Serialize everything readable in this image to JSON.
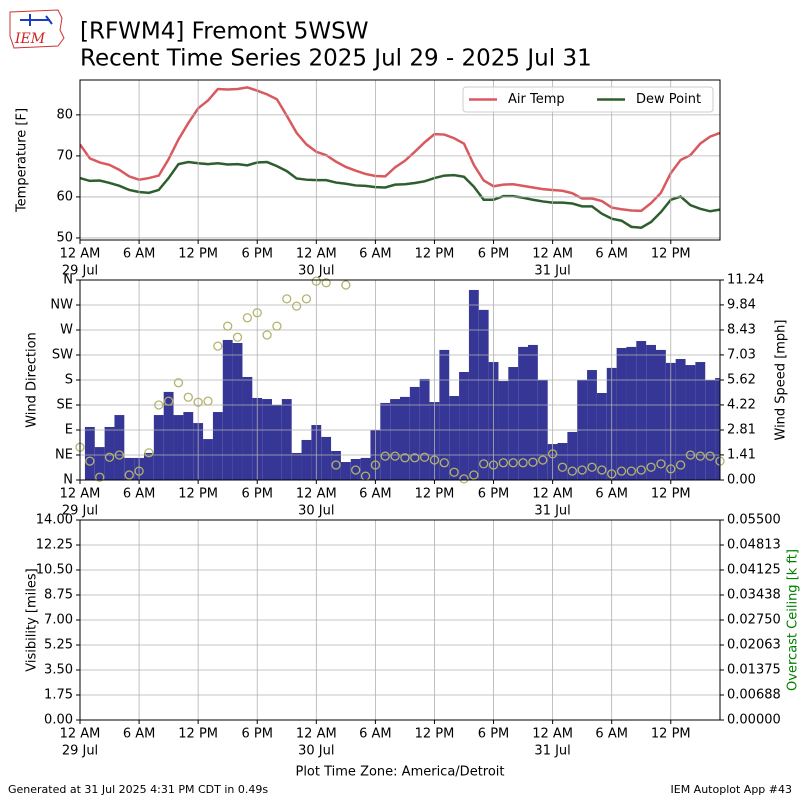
{
  "logo": {
    "text": "IEM"
  },
  "footer": {
    "left": "Generated at 31 Jul 2025 4:31 PM CDT in 0.49s",
    "right": "IEM Autoplot App #43"
  },
  "chart_data": [
    {
      "type": "line",
      "title": "[RFWM4] Fremont 5WSW",
      "subtitle": "Recent Time Series 2025 Jul 29 - 2025 Jul 31",
      "ylabel": "Temperature [F]",
      "x": [
        "2025-07-29T00:00",
        "2025-07-29T01:00",
        "2025-07-29T02:00",
        "2025-07-29T03:00",
        "2025-07-29T04:00",
        "2025-07-29T05:00",
        "2025-07-29T06:00",
        "2025-07-29T07:00",
        "2025-07-29T08:00",
        "2025-07-29T09:00",
        "2025-07-29T10:00",
        "2025-07-29T11:00",
        "2025-07-29T12:00",
        "2025-07-29T13:00",
        "2025-07-29T14:00",
        "2025-07-29T15:00",
        "2025-07-29T16:00",
        "2025-07-29T17:00",
        "2025-07-29T18:00",
        "2025-07-29T19:00",
        "2025-07-29T20:00",
        "2025-07-29T21:00",
        "2025-07-29T22:00",
        "2025-07-29T23:00",
        "2025-07-30T00:00",
        "2025-07-30T01:00",
        "2025-07-30T02:00",
        "2025-07-30T03:00",
        "2025-07-30T04:00",
        "2025-07-30T05:00",
        "2025-07-30T06:00",
        "2025-07-30T07:00",
        "2025-07-30T08:00",
        "2025-07-30T09:00",
        "2025-07-30T10:00",
        "2025-07-30T11:00",
        "2025-07-30T12:00",
        "2025-07-30T13:00",
        "2025-07-30T14:00",
        "2025-07-30T15:00",
        "2025-07-30T16:00",
        "2025-07-30T17:00",
        "2025-07-30T18:00",
        "2025-07-30T19:00",
        "2025-07-30T20:00",
        "2025-07-30T21:00",
        "2025-07-30T22:00",
        "2025-07-30T23:00",
        "2025-07-31T00:00",
        "2025-07-31T01:00",
        "2025-07-31T02:00",
        "2025-07-31T03:00",
        "2025-07-31T04:00",
        "2025-07-31T05:00",
        "2025-07-31T06:00",
        "2025-07-31T07:00",
        "2025-07-31T08:00",
        "2025-07-31T09:00",
        "2025-07-31T10:00",
        "2025-07-31T11:00",
        "2025-07-31T12:00",
        "2025-07-31T13:00",
        "2025-07-31T14:00",
        "2025-07-31T15:00",
        "2025-07-31T16:00",
        "2025-07-31T17:00"
      ],
      "series": [
        {
          "name": "Air Temp",
          "color": "#d9595f",
          "values": [
            72.8,
            69.4,
            68.4,
            67.8,
            66.6,
            65.0,
            64.2,
            64.6,
            65.2,
            69.2,
            74.0,
            78.0,
            81.6,
            83.5,
            86.3,
            86.2,
            86.3,
            86.7,
            85.9,
            85.0,
            83.8,
            79.8,
            75.6,
            72.8,
            71.0,
            70.2,
            68.6,
            67.3,
            66.4,
            65.6,
            65.1,
            65.0,
            67.2,
            68.8,
            71.0,
            73.3,
            75.3,
            75.2,
            74.3,
            73.0,
            67.8,
            64.0,
            62.6,
            63.0,
            63.1,
            62.7,
            62.3,
            61.9,
            61.7,
            61.5,
            60.9,
            59.6,
            59.6,
            59.0,
            57.4,
            57.0,
            56.7,
            56.6,
            58.5,
            61.0,
            65.8,
            69.0,
            70.2,
            73.0,
            74.7,
            75.6
          ]
        },
        {
          "name": "Dew Point",
          "color": "#2e5e2e",
          "values": [
            64.6,
            63.9,
            64.0,
            63.4,
            62.7,
            61.7,
            61.2,
            61.0,
            61.7,
            64.6,
            68.0,
            68.5,
            68.2,
            68.0,
            68.2,
            67.9,
            68.0,
            67.7,
            68.4,
            68.5,
            67.5,
            66.3,
            64.5,
            64.2,
            64.1,
            64.1,
            63.5,
            63.2,
            62.8,
            62.7,
            62.4,
            62.3,
            63.0,
            63.1,
            63.4,
            63.8,
            64.6,
            65.2,
            65.3,
            64.9,
            62.5,
            59.3,
            59.3,
            60.2,
            60.2,
            59.8,
            59.3,
            58.9,
            58.6,
            58.6,
            58.4,
            57.7,
            57.7,
            55.9,
            54.7,
            54.2,
            52.7,
            52.5,
            53.9,
            56.3,
            59.3,
            60.1,
            58.0,
            57.1,
            56.5,
            56.9
          ]
        }
      ],
      "xlim": [
        "2025-07-29T00:00",
        "2025-07-31T17:00"
      ],
      "xticks": [
        {
          "value": "2025-07-29T00:00",
          "label": "12 AM"
        },
        {
          "value": "2025-07-29T06:00",
          "label": "6 AM"
        },
        {
          "value": "2025-07-29T12:00",
          "label": "12 PM"
        },
        {
          "value": "2025-07-29T18:00",
          "label": "6 PM"
        },
        {
          "value": "2025-07-30T00:00",
          "label": "12 AM"
        },
        {
          "value": "2025-07-30T06:00",
          "label": "6 AM"
        },
        {
          "value": "2025-07-30T12:00",
          "label": "12 PM"
        },
        {
          "value": "2025-07-30T18:00",
          "label": "6 PM"
        },
        {
          "value": "2025-07-31T00:00",
          "label": "12 AM"
        },
        {
          "value": "2025-07-31T06:00",
          "label": "6 AM"
        },
        {
          "value": "2025-07-31T12:00",
          "label": "12 PM"
        }
      ],
      "xtick_dates": [
        {
          "value": "2025-07-29T00:00",
          "label": "29 Jul"
        },
        {
          "value": "2025-07-30T00:00",
          "label": "30 Jul"
        },
        {
          "value": "2025-07-31T00:00",
          "label": "31 Jul"
        }
      ],
      "ylim": [
        49.5,
        88.5
      ],
      "yticks": [
        50,
        60,
        70,
        80
      ],
      "grid": true,
      "legend": "upper right"
    },
    {
      "type": "mixed",
      "ylabel": "Wind Direction",
      "y2label": "Wind Speed [mph]",
      "x": [
        "2025-07-29T00:00",
        "2025-07-29T01:00",
        "2025-07-29T02:00",
        "2025-07-29T03:00",
        "2025-07-29T04:00",
        "2025-07-29T05:00",
        "2025-07-29T06:00",
        "2025-07-29T07:00",
        "2025-07-29T08:00",
        "2025-07-29T09:00",
        "2025-07-29T10:00",
        "2025-07-29T11:00",
        "2025-07-29T12:00",
        "2025-07-29T13:00",
        "2025-07-29T14:00",
        "2025-07-29T15:00",
        "2025-07-29T16:00",
        "2025-07-29T17:00",
        "2025-07-29T18:00",
        "2025-07-29T19:00",
        "2025-07-29T20:00",
        "2025-07-29T21:00",
        "2025-07-29T22:00",
        "2025-07-29T23:00",
        "2025-07-30T00:00",
        "2025-07-30T01:00",
        "2025-07-30T02:00",
        "2025-07-30T03:00",
        "2025-07-30T04:00",
        "2025-07-30T05:00",
        "2025-07-30T06:00",
        "2025-07-30T07:00",
        "2025-07-30T08:00",
        "2025-07-30T09:00",
        "2025-07-30T10:00",
        "2025-07-30T11:00",
        "2025-07-30T12:00",
        "2025-07-30T13:00",
        "2025-07-30T14:00",
        "2025-07-30T15:00",
        "2025-07-30T16:00",
        "2025-07-30T17:00",
        "2025-07-30T18:00",
        "2025-07-30T19:00",
        "2025-07-30T20:00",
        "2025-07-30T21:00",
        "2025-07-30T22:00",
        "2025-07-30T23:00",
        "2025-07-31T00:00",
        "2025-07-31T01:00",
        "2025-07-31T02:00",
        "2025-07-31T03:00",
        "2025-07-31T04:00",
        "2025-07-31T05:00",
        "2025-07-31T06:00",
        "2025-07-31T07:00",
        "2025-07-31T08:00",
        "2025-07-31T09:00",
        "2025-07-31T10:00",
        "2025-07-31T11:00",
        "2025-07-31T12:00",
        "2025-07-31T13:00",
        "2025-07-31T14:00",
        "2025-07-31T15:00",
        "2025-07-31T16:00",
        "2025-07-31T17:00"
      ],
      "series": [
        {
          "type": "bar",
          "axis": "y2",
          "color": "#363696",
          "values": [
            null,
            2.98,
            1.85,
            2.98,
            3.65,
            1.24,
            1.24,
            1.52,
            3.65,
            4.95,
            3.65,
            3.82,
            3.2,
            2.3,
            3.82,
            7.87,
            7.7,
            5.79,
            4.61,
            4.55,
            4.22,
            4.55,
            1.52,
            2.25,
            3.09,
            2.42,
            1.63,
            1.01,
            1.18,
            1.24,
            2.81,
            4.33,
            4.55,
            4.67,
            5.23,
            5.68,
            4.38,
            7.31,
            4.72,
            6.07,
            10.68,
            9.56,
            6.63,
            5.56,
            6.35,
            7.48,
            7.59,
            5.62,
            2.02,
            2.08,
            2.7,
            5.62,
            6.18,
            4.89,
            6.3,
            7.42,
            7.48,
            7.81,
            7.59,
            7.31,
            6.58,
            6.8,
            6.46,
            6.63,
            5.62,
            5.73
          ]
        },
        {
          "type": "scatter",
          "color": "#b3b36e",
          "values": [
            59,
            34,
            5,
            41,
            45,
            9,
            16,
            49,
            135,
            142,
            175,
            149,
            140,
            142,
            241,
            277,
            257,
            292,
            301,
            261,
            277,
            326,
            313,
            326,
            358,
            355,
            27,
            351,
            18,
            7,
            27,
            43,
            43,
            40,
            40,
            41,
            36,
            31,
            14,
            2,
            9,
            29,
            27,
            31,
            31,
            31,
            32,
            36,
            47,
            23,
            16,
            18,
            23,
            18,
            11,
            16,
            16,
            18,
            23,
            29,
            20,
            27,
            45,
            43,
            43,
            34
          ]
        }
      ],
      "xlim": [
        "2025-07-29T00:00",
        "2025-07-31T17:00"
      ],
      "xticks": [
        {
          "value": "2025-07-29T00:00",
          "label": "12 AM"
        },
        {
          "value": "2025-07-29T06:00",
          "label": "6 AM"
        },
        {
          "value": "2025-07-29T12:00",
          "label": "12 PM"
        },
        {
          "value": "2025-07-29T18:00",
          "label": "6 PM"
        },
        {
          "value": "2025-07-30T00:00",
          "label": "12 AM"
        },
        {
          "value": "2025-07-30T06:00",
          "label": "6 AM"
        },
        {
          "value": "2025-07-30T12:00",
          "label": "12 PM"
        },
        {
          "value": "2025-07-30T18:00",
          "label": "6 PM"
        },
        {
          "value": "2025-07-31T00:00",
          "label": "12 AM"
        },
        {
          "value": "2025-07-31T06:00",
          "label": "6 AM"
        },
        {
          "value": "2025-07-31T12:00",
          "label": "12 PM"
        }
      ],
      "xtick_dates": [
        {
          "value": "2025-07-29T00:00",
          "label": "29 Jul"
        },
        {
          "value": "2025-07-30T00:00",
          "label": "30 Jul"
        },
        {
          "value": "2025-07-31T00:00",
          "label": "31 Jul"
        }
      ],
      "ylim": [
        0,
        360
      ],
      "yticks": [
        {
          "value": 0,
          "label": "N"
        },
        {
          "value": 45,
          "label": "NE"
        },
        {
          "value": 90,
          "label": "E"
        },
        {
          "value": 135,
          "label": "SE"
        },
        {
          "value": 180,
          "label": "S"
        },
        {
          "value": 225,
          "label": "SW"
        },
        {
          "value": 270,
          "label": "W"
        },
        {
          "value": 315,
          "label": "NW"
        },
        {
          "value": 360,
          "label": "N"
        }
      ],
      "y2lim": [
        0,
        11.24
      ],
      "y2ticks": [
        {
          "value": 0,
          "label": "0.00"
        },
        1.41,
        2.81,
        4.22,
        5.62,
        7.03,
        8.43,
        9.84,
        11.24
      ],
      "grid": true
    },
    {
      "type": "line",
      "ylabel": "Visibility [miles]",
      "y2label": "Overcast Ceiling [k ft]",
      "y2label_color": "#008000",
      "xlabel": "Plot Time Zone: America/Detroit",
      "xlim": [
        "2025-07-29T00:00",
        "2025-07-31T17:00"
      ],
      "xticks": [
        {
          "value": "2025-07-29T00:00",
          "label": "12 AM"
        },
        {
          "value": "2025-07-29T06:00",
          "label": "6 AM"
        },
        {
          "value": "2025-07-29T12:00",
          "label": "12 PM"
        },
        {
          "value": "2025-07-29T18:00",
          "label": "6 PM"
        },
        {
          "value": "2025-07-30T00:00",
          "label": "12 AM"
        },
        {
          "value": "2025-07-30T06:00",
          "label": "6 AM"
        },
        {
          "value": "2025-07-30T12:00",
          "label": "12 PM"
        },
        {
          "value": "2025-07-30T18:00",
          "label": "6 PM"
        },
        {
          "value": "2025-07-31T00:00",
          "label": "12 AM"
        },
        {
          "value": "2025-07-31T06:00",
          "label": "6 AM"
        },
        {
          "value": "2025-07-31T12:00",
          "label": "12 PM"
        }
      ],
      "xtick_dates": [
        {
          "value": "2025-07-29T00:00",
          "label": "29 Jul"
        },
        {
          "value": "2025-07-30T00:00",
          "label": "30 Jul"
        },
        {
          "value": "2025-07-31T00:00",
          "label": "31 Jul"
        }
      ],
      "ylim": [
        0,
        14
      ],
      "yticks": [
        {
          "value": 0,
          "label": "0.00"
        },
        1.75,
        {
          "value": 3.5,
          "label": "3.50"
        },
        5.25,
        {
          "value": 7,
          "label": "7.00"
        },
        8.75,
        {
          "value": 10.5,
          "label": "10.50"
        },
        12.25,
        {
          "value": 14,
          "label": "14.00"
        }
      ],
      "y2lim": [
        0,
        0.055
      ],
      "y2ticks": [
        {
          "value": 0,
          "label": "0.00000"
        },
        {
          "value": 0.006875,
          "label": "0.00688"
        },
        {
          "value": 0.01375,
          "label": "0.01375"
        },
        {
          "value": 0.020625,
          "label": "0.02063"
        },
        {
          "value": 0.0275,
          "label": "0.02750"
        },
        {
          "value": 0.034375,
          "label": "0.03438"
        },
        {
          "value": 0.04125,
          "label": "0.04125"
        },
        {
          "value": 0.048125,
          "label": "0.04813"
        },
        {
          "value": 0.055,
          "label": "0.05500"
        }
      ],
      "grid": true
    }
  ]
}
